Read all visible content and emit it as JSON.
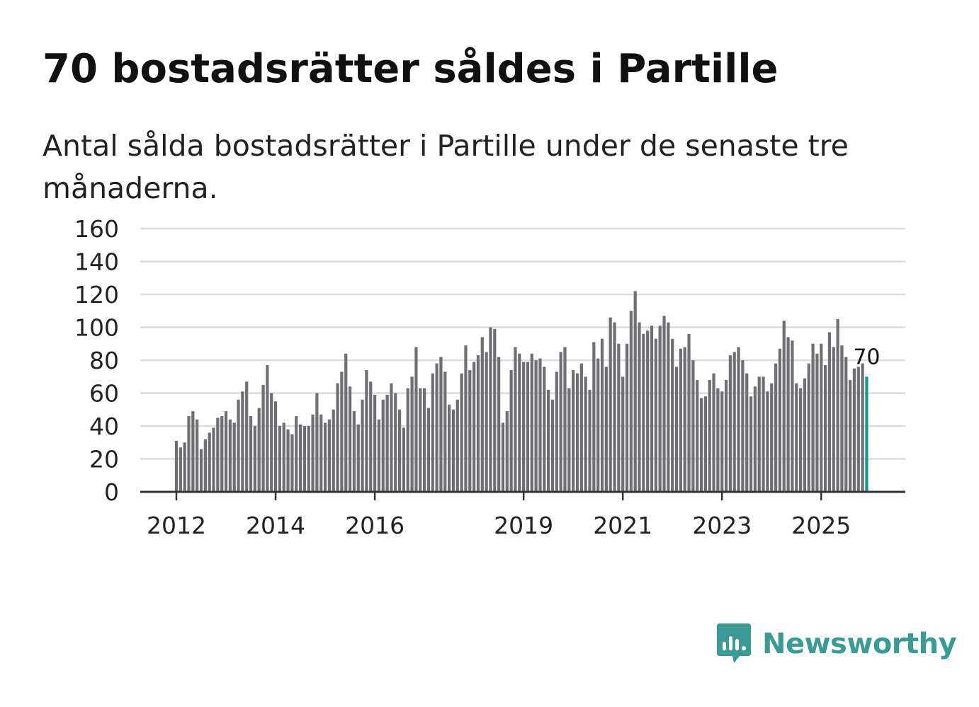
{
  "title": "70 bostadsrätter såldes i Partille",
  "subtitle": "Antal sålda bostadsrätter i Partille under de senaste tre månaderna.",
  "brand": {
    "name": "Newsworthy",
    "color": "#3a9a94",
    "icon": "newsworthy-logo-icon"
  },
  "colors": {
    "bar": "#6e6e73",
    "highlight": "#17968f",
    "grid": "#dcdcdc",
    "axis": "#333333"
  },
  "chart_data": {
    "type": "bar",
    "title": "70 bostadsrätter såldes i Partille",
    "xlabel": "",
    "ylabel": "",
    "ylim": [
      0,
      160
    ],
    "y_ticks": [
      "0",
      "20",
      "40",
      "60",
      "80",
      "100",
      "120",
      "140",
      "160"
    ],
    "x_start": "2012-01",
    "x_ticks": [
      {
        "label": "2012",
        "index": 0
      },
      {
        "label": "2014",
        "index": 24
      },
      {
        "label": "2016",
        "index": 48
      },
      {
        "label": "2019",
        "index": 84
      },
      {
        "label": "2021",
        "index": 108
      },
      {
        "label": "2023",
        "index": 132
      },
      {
        "label": "2025",
        "index": 156
      }
    ],
    "values": [
      31,
      27,
      30,
      46,
      49,
      44,
      26,
      32,
      36,
      39,
      45,
      46,
      49,
      44,
      42,
      56,
      61,
      67,
      46,
      40,
      51,
      65,
      77,
      60,
      55,
      40,
      42,
      38,
      35,
      46,
      41,
      40,
      40,
      47,
      60,
      47,
      42,
      44,
      50,
      66,
      73,
      84,
      64,
      49,
      41,
      56,
      74,
      67,
      59,
      44,
      56,
      59,
      66,
      60,
      50,
      39,
      63,
      70,
      88,
      63,
      63,
      51,
      72,
      78,
      82,
      73,
      53,
      50,
      56,
      72,
      89,
      74,
      79,
      83,
      94,
      85,
      100,
      99,
      82,
      42,
      49,
      74,
      88,
      84,
      79,
      79,
      84,
      80,
      81,
      76,
      62,
      56,
      73,
      85,
      88,
      63,
      74,
      72,
      78,
      70,
      62,
      91,
      81,
      93,
      76,
      106,
      103,
      90,
      70,
      90,
      110,
      122,
      103,
      96,
      98,
      101,
      93,
      101,
      107,
      103,
      93,
      76,
      87,
      88,
      96,
      80,
      68,
      57,
      58,
      68,
      72,
      63,
      61,
      68,
      83,
      85,
      88,
      80,
      72,
      58,
      64,
      70,
      70,
      61,
      66,
      78,
      87,
      104,
      94,
      92,
      66,
      63,
      69,
      78,
      90,
      84,
      90,
      77,
      97,
      88,
      105,
      89,
      82,
      68,
      75,
      76,
      78,
      70
    ],
    "highlight": {
      "index": 167,
      "value": 70,
      "label": "70"
    }
  }
}
